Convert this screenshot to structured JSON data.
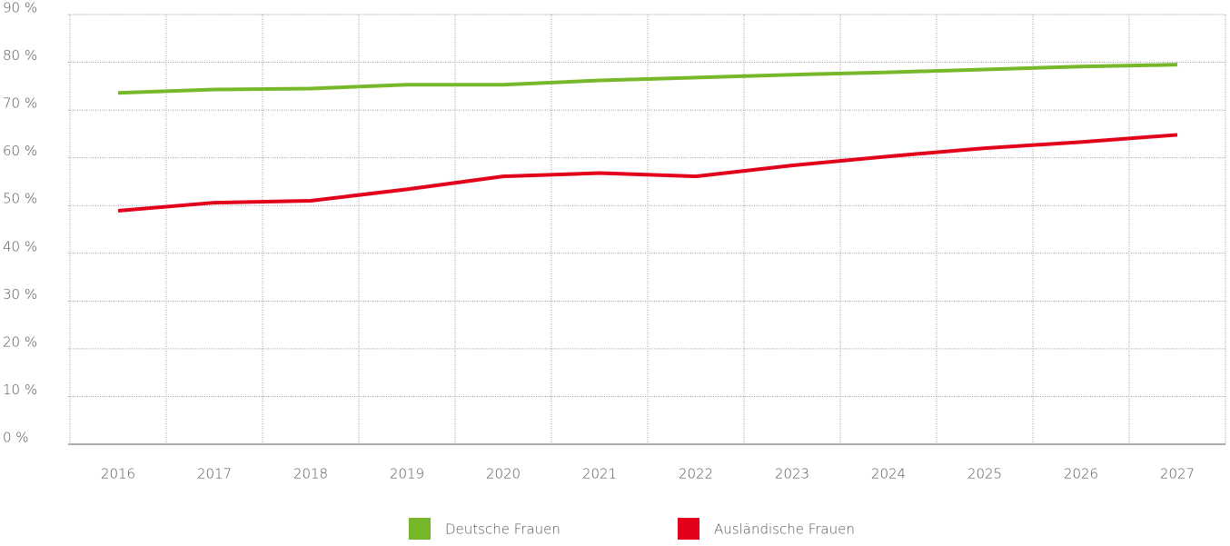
{
  "chart_data": {
    "type": "line",
    "categories": [
      "2016",
      "2017",
      "2018",
      "2019",
      "2020",
      "2021",
      "2022",
      "2023",
      "2024",
      "2025",
      "2026",
      "2027"
    ],
    "series": [
      {
        "name": "Deutsche Frauen",
        "color": "#76b82a",
        "values": [
          73.6,
          74.3,
          74.5,
          75.3,
          75.3,
          76.2,
          76.8,
          77.4,
          77.9,
          78.5,
          79.1,
          79.5
        ]
      },
      {
        "name": "Ausländische Frauen",
        "color": "#e2001a",
        "values": [
          48.9,
          50.6,
          51.0,
          53.4,
          56.1,
          56.8,
          56.1,
          58.4,
          60.3,
          62.0,
          63.3,
          64.8
        ]
      }
    ],
    "ylim": [
      0,
      90
    ],
    "yticks": [
      {
        "value": 0,
        "label": "0 %"
      },
      {
        "value": 10,
        "label": "10 %"
      },
      {
        "value": 20,
        "label": "20 %"
      },
      {
        "value": 30,
        "label": "30 %"
      },
      {
        "value": 40,
        "label": "40 %"
      },
      {
        "value": 50,
        "label": "50 %"
      },
      {
        "value": 60,
        "label": "60 %"
      },
      {
        "value": 70,
        "label": "70 %"
      },
      {
        "value": 80,
        "label": "80 %"
      },
      {
        "value": 90,
        "label": "90 %"
      }
    ],
    "grid": true,
    "legend": "bottom"
  }
}
